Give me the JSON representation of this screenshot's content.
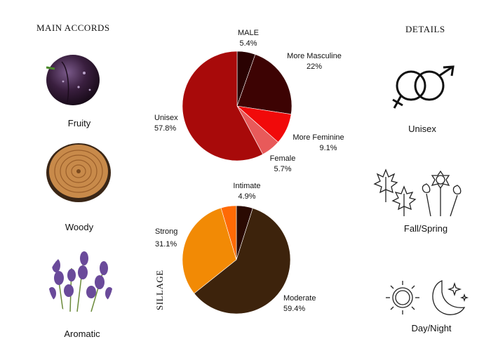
{
  "accords": {
    "title": "MAIN ACCORDS",
    "items": [
      {
        "label": "Fruity",
        "icon": "plum-icon"
      },
      {
        "label": "Woody",
        "icon": "wood-slice-icon"
      },
      {
        "label": "Aromatic",
        "icon": "lavender-icon"
      }
    ]
  },
  "details": {
    "title": "DETAILS",
    "items": [
      {
        "label": "Unisex",
        "icon": "gender-symbols-icon"
      },
      {
        "label": "Fall/Spring",
        "icon": "leaves-flowers-icon"
      },
      {
        "label": "Day/Night",
        "icon": "sun-moon-icon"
      }
    ]
  },
  "sillage_label": "SILLAGE",
  "chart_data": [
    {
      "type": "pie",
      "title": "",
      "slices": [
        {
          "name": "MALE",
          "value": 5.4,
          "label": "5.4%",
          "color": "#2a0202"
        },
        {
          "name": "More Masculine",
          "value": 22,
          "label": "22%",
          "color": "#3d0303"
        },
        {
          "name": "More Feminine",
          "value": 9.1,
          "label": "9.1%",
          "color": "#f10a0a"
        },
        {
          "name": "Female",
          "value": 5.7,
          "label": "5.7%",
          "color": "#e85a5a"
        },
        {
          "name": "Unisex",
          "value": 57.8,
          "label": "57.8%",
          "color": "#a80a0a"
        }
      ]
    },
    {
      "type": "pie",
      "title": "",
      "slices": [
        {
          "name": "Intimate",
          "value": 4.9,
          "label": "4.9%",
          "color": "#2a0a02"
        },
        {
          "name": "Moderate",
          "value": 59.4,
          "label": "59.4%",
          "color": "#3d230c"
        },
        {
          "name": "Strong",
          "value": 31.1,
          "label": "31.1%",
          "color": "#f28a05"
        },
        {
          "name": "",
          "value": 4.6,
          "label": "",
          "color": "#ff6a05"
        }
      ]
    }
  ]
}
